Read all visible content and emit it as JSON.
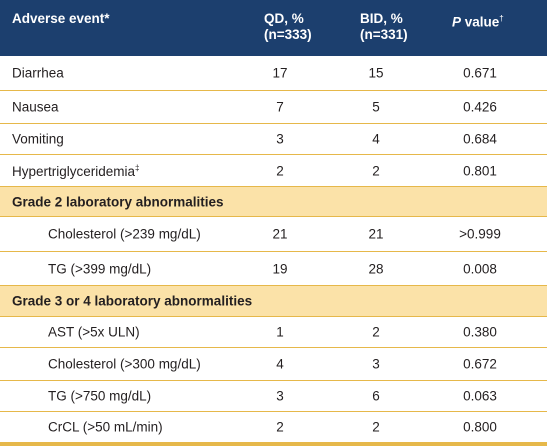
{
  "header": {
    "col0": "Adverse event*",
    "col1_line1": "QD, %",
    "col1_line2": "(n=333)",
    "col2_line1": "BID, %",
    "col2_line2": "(n=331)",
    "col3_label_italic": "P",
    "col3_label_rest": " value",
    "col3_sup": "†"
  },
  "rows": [
    {
      "event": "Diarrhea",
      "qd": "17",
      "bid": "15",
      "p": "0.671"
    },
    {
      "event": "Nausea",
      "qd": "7",
      "bid": "5",
      "p": "0.426"
    },
    {
      "event": "Vomiting",
      "qd": "3",
      "bid": "4",
      "p": "0.684"
    },
    {
      "event": "Hypertriglyceridemia",
      "event_sup": "‡",
      "qd": "2",
      "bid": "2",
      "p": "0.801"
    }
  ],
  "section_grade2": "Grade 2 laboratory abnormalities",
  "grade2_rows": [
    {
      "event": "Cholesterol (>239 mg/dL)",
      "qd": "21",
      "bid": "21",
      "p": ">0.999"
    },
    {
      "event": "TG (>399 mg/dL)",
      "qd": "19",
      "bid": "28",
      "p": "0.008"
    }
  ],
  "section_grade34": "Grade 3 or 4 laboratory abnormalities",
  "grade34_rows": [
    {
      "event": "AST (>5x ULN)",
      "qd": "1",
      "bid": "2",
      "p": "0.380"
    },
    {
      "event": "Cholesterol (>300 mg/dL)",
      "qd": "4",
      "bid": "3",
      "p": "0.672"
    },
    {
      "event": "TG (>750 mg/dL)",
      "qd": "3",
      "bid": "6",
      "p": "0.063"
    },
    {
      "event": "CrCL (>50 mL/min)",
      "qd": "2",
      "bid": "2",
      "p": "0.800"
    }
  ],
  "colors": {
    "header_bg": "#1c3f6e",
    "section_bg": "#fbe2a8",
    "rule": "#e6b84a"
  }
}
